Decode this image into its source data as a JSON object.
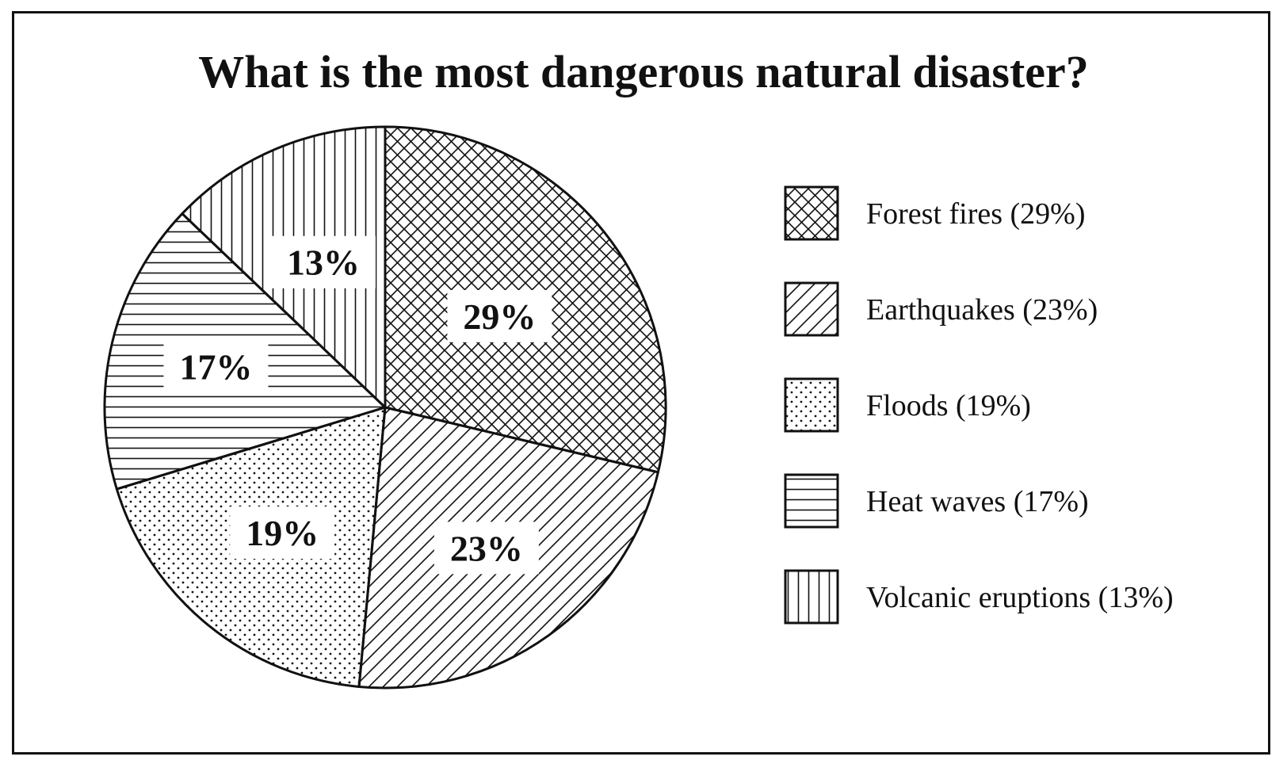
{
  "chart_data": {
    "type": "pie",
    "title": "What is the most dangerous natural disaster?",
    "slices": [
      {
        "name": "Forest fires",
        "value": 29,
        "label": "29%",
        "legend_label": "Forest fires (29%)",
        "pattern": "crosshatch"
      },
      {
        "name": "Earthquakes",
        "value": 23,
        "label": "23%",
        "legend_label": "Earthquakes (23%)",
        "pattern": "diagonal"
      },
      {
        "name": "Floods",
        "value": 19,
        "label": "19%",
        "legend_label": "Floods (19%)",
        "pattern": "dots"
      },
      {
        "name": "Heat waves",
        "value": 17,
        "label": "17%",
        "legend_label": "Heat waves (17%)",
        "pattern": "horizontal"
      },
      {
        "name": "Volcanic eruptions",
        "value": 13,
        "label": "13%",
        "legend_label": "Volcanic eruptions (13%)",
        "pattern": "vertical"
      }
    ],
    "start_angle": "12 o'clock",
    "direction": "clockwise",
    "legend_placement": "right",
    "colors": {
      "ink": "#111111",
      "background": "#ffffff"
    }
  }
}
